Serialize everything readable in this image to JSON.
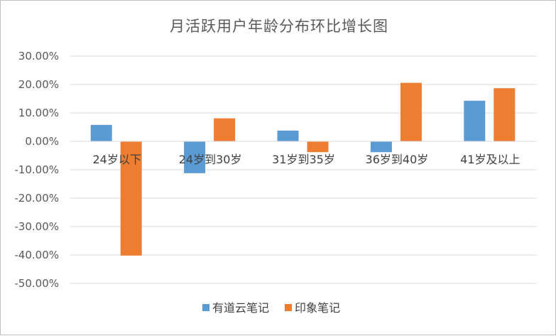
{
  "chart_data": {
    "type": "bar",
    "title": "月活跃用户年龄分布环比增长图",
    "categories": [
      "24岁以下",
      "24岁到30岁",
      "31岁到35岁",
      "36岁到40岁",
      "41岁及以上"
    ],
    "series": [
      {
        "name": "有道云笔记",
        "values": [
          0.058,
          -0.112,
          0.038,
          -0.038,
          0.143
        ],
        "color": "#5b9bd5"
      },
      {
        "name": "印象笔记",
        "values": [
          -0.402,
          0.081,
          -0.038,
          0.206,
          0.187
        ],
        "color": "#ed7d31"
      }
    ],
    "yticks": [
      "30.00%",
      "20.00%",
      "10.00%",
      "0.00%",
      "-10.00%",
      "-20.00%",
      "-30.00%",
      "-40.00%",
      "-50.00%"
    ],
    "ylim": [
      -0.5,
      0.3
    ],
    "grid": true,
    "legend": "bottom"
  }
}
